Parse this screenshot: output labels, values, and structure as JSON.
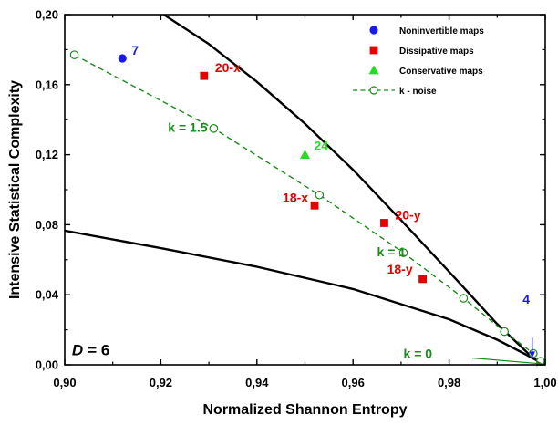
{
  "chart_data": {
    "type": "scatter",
    "xlabel": "Normalized Shannon Entropy",
    "ylabel": "Intensive Statistical Complexity",
    "xlim": [
      0.9,
      1.0
    ],
    "ylim": [
      0.0,
      0.2
    ],
    "x_ticks": [
      "0,90",
      "0,92",
      "0,94",
      "0,96",
      "0,98",
      "1,00"
    ],
    "y_ticks": [
      "0,00",
      "0,04",
      "0,08",
      "0,12",
      "0,16",
      "0,20"
    ],
    "x_tick_values": [
      0.9,
      0.92,
      0.94,
      0.96,
      0.98,
      1.0
    ],
    "y_tick_values": [
      0.0,
      0.04,
      0.08,
      0.12,
      0.16,
      0.2
    ],
    "grid": false,
    "legend_position": "top-right",
    "legend": [
      {
        "label": "Noninvertible  maps",
        "marker": "circle",
        "color": "#1a1ae6"
      },
      {
        "label": "Dissipative  maps",
        "marker": "square",
        "color": "#e60000"
      },
      {
        "label": "Conservative  maps",
        "marker": "triangle",
        "color": "#22dd22"
      },
      {
        "label": "k - noise",
        "marker": "open-circle-dashed",
        "color": "#1a8a1a"
      }
    ],
    "boundary_curves": {
      "color": "#000000",
      "upper": {
        "x": [
          0.9206,
          0.93,
          0.94,
          0.95,
          0.96,
          0.97,
          0.98,
          0.99,
          0.9975,
          1.0
        ],
        "y": [
          0.2,
          0.1832,
          0.1616,
          0.1377,
          0.1114,
          0.0826,
          0.0532,
          0.0233,
          0.0038,
          0.0
        ]
      },
      "lower": {
        "x": [
          0.9,
          0.92,
          0.94,
          0.96,
          0.98,
          0.99,
          0.995,
          1.0
        ],
        "y": [
          0.0766,
          0.0666,
          0.056,
          0.0433,
          0.026,
          0.0143,
          0.0073,
          0.0
        ]
      }
    },
    "series": [
      {
        "name": "Noninvertible  maps",
        "marker": "circle",
        "color": "#1a1ae6",
        "points": [
          {
            "x": 0.912,
            "y": 0.175,
            "label": "7"
          }
        ]
      },
      {
        "name": "Dissipative  maps",
        "marker": "square",
        "color": "#e60000",
        "points": [
          {
            "x": 0.929,
            "y": 0.165,
            "label": "20-x"
          },
          {
            "x": 0.952,
            "y": 0.091,
            "label": "18-x"
          },
          {
            "x": 0.9665,
            "y": 0.081,
            "label": "20-y"
          },
          {
            "x": 0.9745,
            "y": 0.049,
            "label": "18-y"
          }
        ]
      },
      {
        "name": "Conservative  maps",
        "marker": "triangle",
        "color": "#22dd22",
        "points": [
          {
            "x": 0.95,
            "y": 0.12,
            "label": "24"
          }
        ]
      },
      {
        "name": "k - noise",
        "marker": "open-circle-dashed",
        "color": "#1a8a1a",
        "points": [
          {
            "x": 0.902,
            "y": 0.177
          },
          {
            "x": 0.931,
            "y": 0.135
          },
          {
            "x": 0.953,
            "y": 0.097
          },
          {
            "x": 0.9705,
            "y": 0.064
          },
          {
            "x": 0.983,
            "y": 0.038
          },
          {
            "x": 0.9915,
            "y": 0.019
          },
          {
            "x": 0.9975,
            "y": 0.0065
          },
          {
            "x": 0.999,
            "y": 0.002
          }
        ]
      }
    ],
    "annotations": [
      {
        "text": "k = 1.5",
        "x": 0.9215,
        "y": 0.133,
        "color": "#1a8a1a"
      },
      {
        "text": "k = 1",
        "x": 0.965,
        "y": 0.062,
        "color": "#1a8a1a"
      },
      {
        "text": "k = 0",
        "x": 0.9705,
        "y": 0.004,
        "color": "#1a8a1a"
      },
      {
        "text": "4",
        "x": 0.9953,
        "y": 0.035,
        "color": "#1a1ae6"
      },
      {
        "text": "D",
        "x": 0.9015,
        "y": 0.0055,
        "color": "#000000"
      },
      {
        "text": " = 6",
        "x": 0.9048,
        "y": 0.0055,
        "color": "#000000"
      }
    ],
    "arrows": [
      {
        "name": "arrow-4",
        "color": "#1a1ae6",
        "from": {
          "x": 0.9973,
          "y": 0.0155
        },
        "to": {
          "x": 0.9973,
          "y": 0.004
        }
      },
      {
        "name": "arrow-k0",
        "color": "#1a8a1a",
        "from": {
          "x": 0.9848,
          "y": 0.0039
        },
        "to": {
          "x": 0.9995,
          "y": 0.0005
        }
      }
    ]
  }
}
